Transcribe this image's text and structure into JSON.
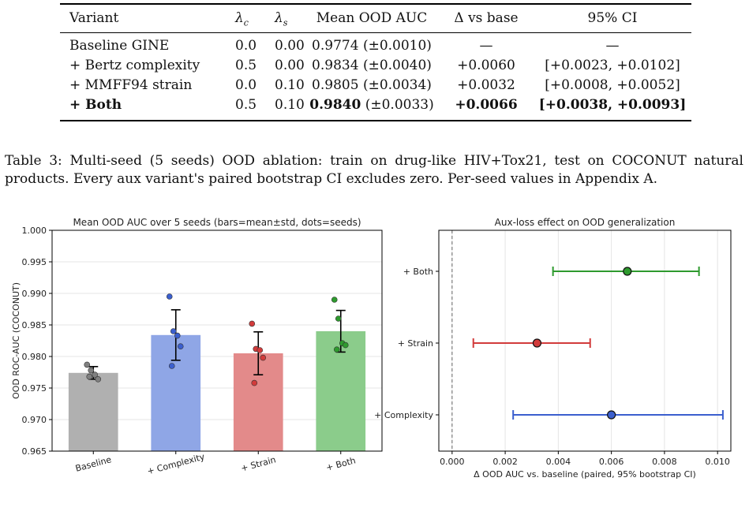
{
  "table": {
    "headers": [
      "Variant",
      "λc",
      "λs",
      "Mean OOD AUC",
      "Δ vs base",
      "95% CI"
    ],
    "rows": [
      {
        "variant": "Baseline GINE",
        "lc": "0.0",
        "ls": "0.00",
        "mean": "0.9774",
        "std": "(±0.0010)",
        "delta": "—",
        "ci": "—",
        "bold": false
      },
      {
        "variant": "+ Bertz complexity",
        "lc": "0.5",
        "ls": "0.00",
        "mean": "0.9834",
        "std": "(±0.0040)",
        "delta": "+0.0060",
        "ci": "[+0.0023, +0.0102]",
        "bold": false
      },
      {
        "variant": "+ MMFF94 strain",
        "lc": "0.0",
        "ls": "0.10",
        "mean": "0.9805",
        "std": "(±0.0034)",
        "delta": "+0.0032",
        "ci": "[+0.0008, +0.0052]",
        "bold": false
      },
      {
        "variant": "+ Both",
        "lc": "0.5",
        "ls": "0.10",
        "mean": "0.9840",
        "std": "(±0.0033)",
        "delta": "+0.0066",
        "ci": "[+0.0038, +0.0093]",
        "bold": true
      }
    ]
  },
  "caption": "Table 3: Multi-seed (5 seeds) OOD ablation: train on drug-like HIV+Tox21, test on COCONUT natural products. Every aux variant's paired bootstrap CI excludes zero. Per-seed values in Appendix A.",
  "chart_data": [
    {
      "type": "bar",
      "title": "Mean OOD AUC over 5 seeds (bars=mean±std, dots=seeds)",
      "xlabel": "",
      "ylabel": "OOD ROC-AUC (COCONUT)",
      "ylim": [
        0.965,
        1.0
      ],
      "yticks": [
        "0.965",
        "0.970",
        "0.975",
        "0.980",
        "0.985",
        "0.990",
        "0.995",
        "1.000"
      ],
      "grid": "y",
      "categories": [
        "Baseline",
        "+ Complexity",
        "+ Strain",
        "+ Both"
      ],
      "values": [
        0.9774,
        0.9834,
        0.9805,
        0.984
      ],
      "errors": [
        0.001,
        0.004,
        0.0034,
        0.0033
      ],
      "colors": [
        "#b0b0b0",
        "#8fa6e6",
        "#e38a8a",
        "#8bcc8b"
      ],
      "dot_colors": [
        "#808080",
        "#3b5fce",
        "#d23b3b",
        "#2e9a2e"
      ],
      "seeds": [
        [
          0.9787,
          0.9778,
          0.9771,
          0.9764,
          0.9768
        ],
        [
          0.9895,
          0.984,
          0.9833,
          0.9816,
          0.9785
        ],
        [
          0.9852,
          0.9812,
          0.981,
          0.9798,
          0.9758
        ],
        [
          0.989,
          0.986,
          0.9821,
          0.9818,
          0.9811
        ]
      ]
    },
    {
      "type": "scatter",
      "title": "Aux-loss effect on OOD generalization",
      "xlabel": "Δ OOD AUC vs. baseline (paired, 95% bootstrap CI)",
      "ylabel": "",
      "xlim": [
        -0.0005,
        0.0105
      ],
      "xticks": [
        "0.000",
        "0.002",
        "0.004",
        "0.006",
        "0.008",
        "0.010"
      ],
      "grid": "x",
      "categories": [
        "+ Complexity",
        "+ Strain",
        "+ Both"
      ],
      "values": [
        0.006,
        0.0032,
        0.0066
      ],
      "ci_low": [
        0.0023,
        0.0008,
        0.0038
      ],
      "ci_high": [
        0.0102,
        0.0052,
        0.0093
      ],
      "colors": [
        "#3b5fce",
        "#d23b3b",
        "#2e9a2e"
      ],
      "reference_line": 0.0
    }
  ]
}
